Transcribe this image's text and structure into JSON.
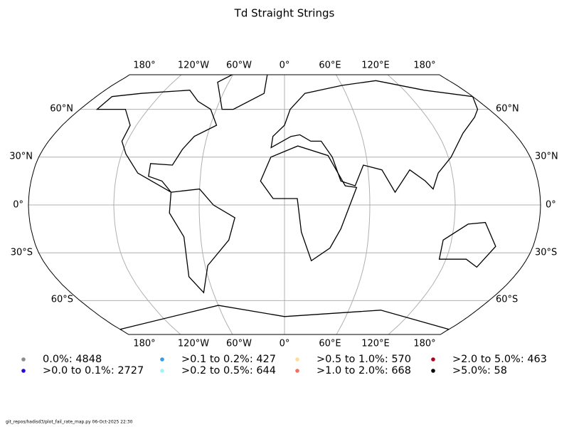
{
  "title": "Td Straight Strings",
  "map": {
    "lon_labels": [
      "180°",
      "120°W",
      "60°W",
      "0°",
      "60°E",
      "120°E",
      "180°"
    ],
    "lat_labels": [
      "60°N",
      "30°N",
      "0°",
      "30°S",
      "60°S"
    ]
  },
  "legend": [
    {
      "label": "0.0%: 4848",
      "color": "#8c8c8c"
    },
    {
      "label": ">0.0 to 0.1%: 2727",
      "color": "#2606d9"
    },
    {
      "label": ">0.1 to 0.2%: 427",
      "color": "#3b9ae0"
    },
    {
      "label": ">0.2 to 0.5%: 644",
      "color": "#a0f3f7"
    },
    {
      "label": ">0.5 to 1.0%: 570",
      "color": "#fddc9c"
    },
    {
      "label": ">1.0 to 2.0%: 668",
      "color": "#f36f62"
    },
    {
      "label": ">2.0 to 5.0%: 463",
      "color": "#b0001c"
    },
    {
      "label": ">5.0%: 58",
      "color": "#000000"
    }
  ],
  "footer": "git_repos/hadisd3/plot_fail_rate_map.py   06-Oct-2025 22:30"
}
